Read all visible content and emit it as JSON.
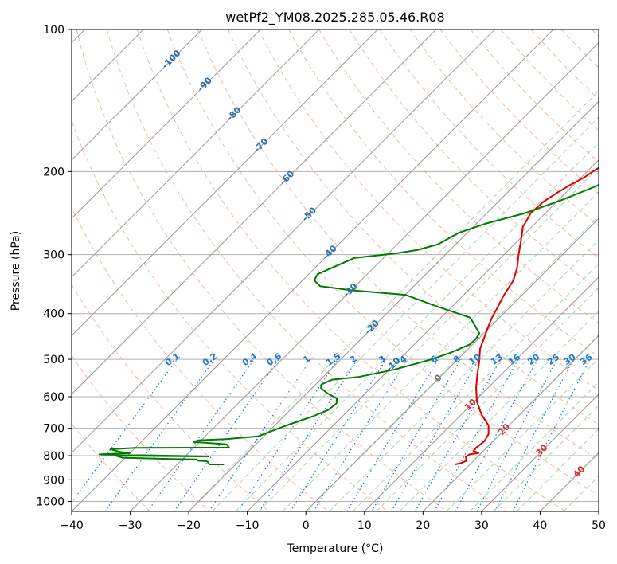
{
  "chart_data": {
    "type": "line",
    "title": "wetPf2_YM08.2025.285.05.46.R08",
    "xlabel": "Temperature (°C)",
    "ylabel": "Pressure (hPa)",
    "xlim": [
      -40,
      50
    ],
    "ylim": [
      1050,
      100
    ],
    "y_scale": "log",
    "x_ticks": [
      -40,
      -30,
      -20,
      -10,
      0,
      10,
      20,
      30,
      40,
      50
    ],
    "y_ticks": [
      100,
      200,
      300,
      400,
      500,
      600,
      700,
      800,
      900,
      1000
    ],
    "grid": true,
    "colors": {
      "temperature": "#e00000",
      "dewpoint": "#007a00",
      "isotherm": "#9a9a9a",
      "dry_adiabat": "#f2a080",
      "moist_adiabat": "#9fd09f",
      "mixing_ratio": "#1e78d0",
      "hidden_isotherm_label": "#2a6fa8",
      "moist_label": "#d03030"
    },
    "series": [
      {
        "key": "temperature",
        "points": [
          [
            17.5,
            835
          ],
          [
            18.2,
            830
          ],
          [
            18.8,
            820
          ],
          [
            18.0,
            805
          ],
          [
            18.2,
            795
          ],
          [
            19.5,
            790
          ],
          [
            18.3,
            782
          ],
          [
            18.2,
            770
          ],
          [
            18.5,
            745
          ],
          [
            18.0,
            720
          ],
          [
            16.5,
            690
          ],
          [
            13.5,
            655
          ],
          [
            10.5,
            615
          ],
          [
            8.0,
            575
          ],
          [
            6.0,
            540
          ],
          [
            4.0,
            505
          ],
          [
            2.0,
            475
          ],
          [
            0.8,
            450
          ],
          [
            -0.3,
            428
          ],
          [
            -1.3,
            408
          ],
          [
            -2.0,
            390
          ],
          [
            -3.0,
            368
          ],
          [
            -4.0,
            340
          ],
          [
            -5.5,
            320
          ],
          [
            -7.5,
            300
          ],
          [
            -9.5,
            280
          ],
          [
            -11.5,
            262
          ],
          [
            -12.5,
            245
          ],
          [
            -12.3,
            232
          ],
          [
            -11.5,
            222
          ],
          [
            -10.5,
            213
          ],
          [
            -9.5,
            206
          ],
          [
            -9.0,
            200
          ],
          [
            -8.2,
            192
          ],
          [
            -7.5,
            185
          ],
          [
            -6.0,
            175
          ],
          [
            -4.5,
            168
          ],
          [
            -3.5,
            160
          ],
          [
            -2.0,
            150
          ],
          [
            0.0,
            142
          ],
          [
            1.5,
            135
          ],
          [
            3.0,
            128
          ],
          [
            4.5,
            120
          ],
          [
            6.5,
            113
          ],
          [
            8.0,
            107
          ],
          [
            9.0,
            100
          ]
        ]
      },
      {
        "key": "dewpoint",
        "points": [
          [
            -22.0,
            835
          ],
          [
            -24.5,
            835
          ],
          [
            -25.0,
            827
          ],
          [
            -25.5,
            822
          ],
          [
            -27.0,
            820
          ],
          [
            -27.5,
            815
          ],
          [
            -32.0,
            813
          ],
          [
            -40.5,
            808
          ],
          [
            -42.0,
            800
          ],
          [
            -26.0,
            803
          ],
          [
            -45.0,
            795
          ],
          [
            -40.0,
            790
          ],
          [
            -42.0,
            785
          ],
          [
            -44.0,
            775
          ],
          [
            -40.0,
            770
          ],
          [
            -24.0,
            769
          ],
          [
            -25.0,
            757
          ],
          [
            -31.0,
            748
          ],
          [
            -30.5,
            742
          ],
          [
            -26.0,
            738
          ],
          [
            -21.0,
            728
          ],
          [
            -18.0,
            690
          ],
          [
            -15.0,
            660
          ],
          [
            -13.5,
            640
          ],
          [
            -13.2,
            620
          ],
          [
            -14.0,
            605
          ],
          [
            -16.5,
            590
          ],
          [
            -18.5,
            575
          ],
          [
            -19.0,
            565
          ],
          [
            -18.0,
            552
          ],
          [
            -14.0,
            545
          ],
          [
            -9.0,
            525
          ],
          [
            -4.5,
            500
          ],
          [
            -2.5,
            485
          ],
          [
            -0.5,
            465
          ],
          [
            -0.4,
            452
          ],
          [
            -0.8,
            440
          ],
          [
            -5.0,
            408
          ],
          [
            -13.0,
            385
          ],
          [
            -20.0,
            365
          ],
          [
            -30.0,
            357
          ],
          [
            -36.0,
            350
          ],
          [
            -38.0,
            340
          ],
          [
            -38.5,
            330
          ],
          [
            -35.0,
            305
          ],
          [
            -28.5,
            298
          ],
          [
            -25.5,
            293
          ],
          [
            -23.0,
            285
          ],
          [
            -21.5,
            270
          ],
          [
            -18.5,
            258
          ],
          [
            -13.5,
            245
          ],
          [
            -9.5,
            230
          ],
          [
            -6.0,
            215
          ],
          [
            -3.5,
            200
          ],
          [
            -1.0,
            190
          ],
          [
            0.5,
            180
          ],
          [
            1.5,
            168
          ],
          [
            2.2,
            155
          ],
          [
            2.8,
            142
          ],
          [
            3.2,
            130
          ],
          [
            4.0,
            120
          ],
          [
            5.5,
            113
          ],
          [
            6.5,
            108
          ],
          [
            7.5,
            104
          ],
          [
            8.5,
            100
          ]
        ]
      }
    ],
    "isotherm_labels": [
      "-100",
      "-90",
      "-80",
      "-70",
      "-60",
      "-50",
      "-40",
      "-30",
      "-20",
      "-10",
      "0",
      "10",
      "20",
      "30",
      "40"
    ],
    "mixing_ratio_labels": [
      "0.1",
      "0.2",
      "0.4",
      "0.6",
      "1",
      "1.5",
      "2",
      "3",
      "4",
      "6",
      "8",
      "10",
      "13",
      "16",
      "20",
      "25",
      "30",
      "36"
    ]
  }
}
